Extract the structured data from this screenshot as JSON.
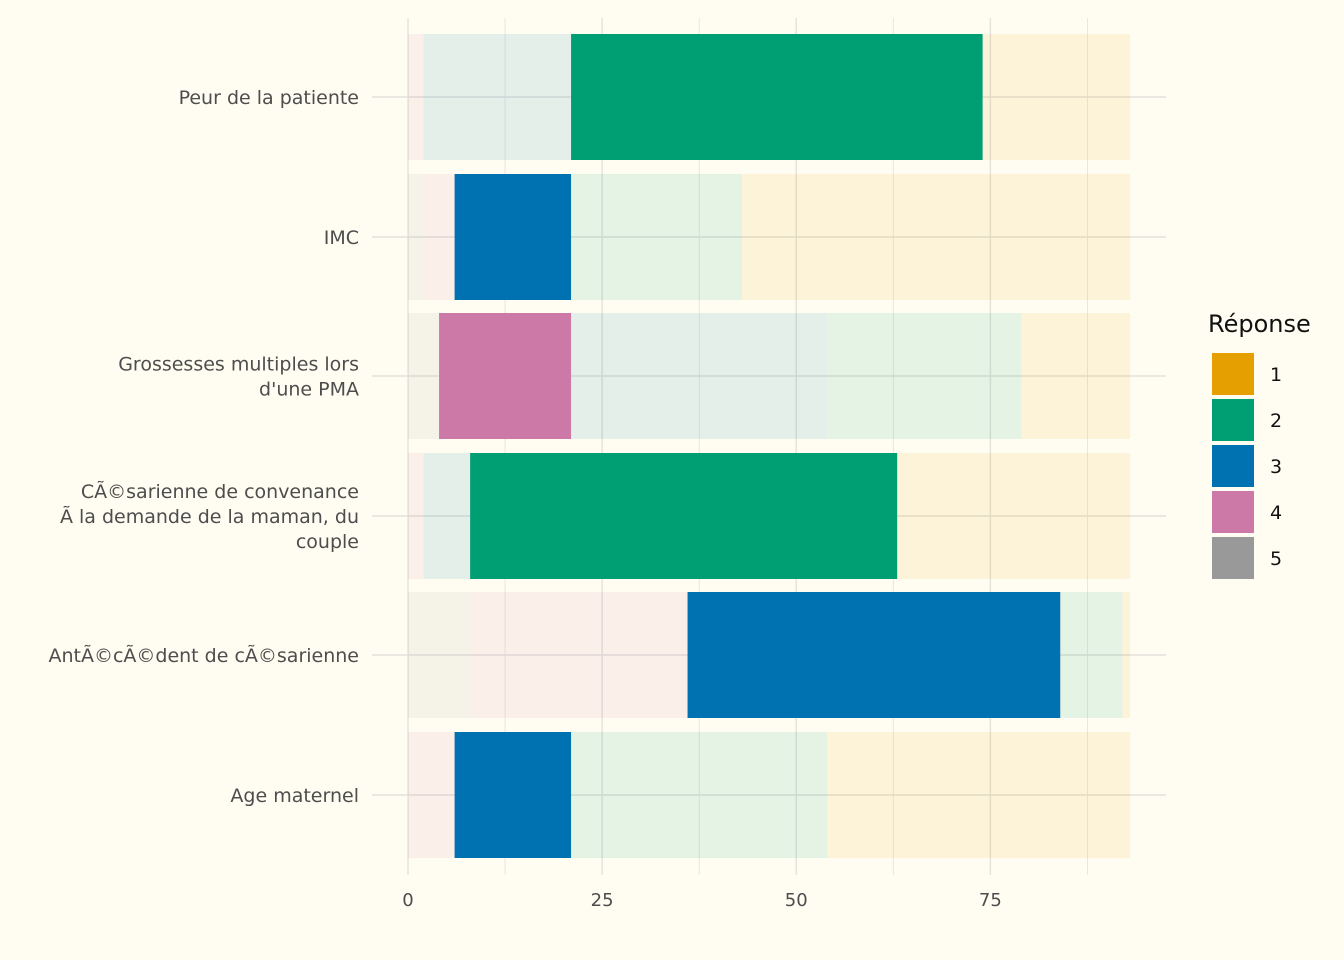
{
  "chart_data": {
    "type": "bar",
    "orientation": "horizontal",
    "stacked": true,
    "categories": [
      "Peur de la patiente",
      "IMC",
      "Grossesses multiples lors d'une PMA",
      "CÃ©sarienne de convenance Ã  la demande de la maman, du couple",
      "AntÃ©cÃ©dent de cÃ©sarienne",
      "Age maternel"
    ],
    "category_lines": [
      [
        "Peur de la patiente"
      ],
      [
        "IMC"
      ],
      [
        "Grossesses multiples lors",
        "d'une PMA"
      ],
      [
        "CÃ©sarienne de convenance",
        "Ã  la demande de la maman, du",
        "couple"
      ],
      [
        "AntÃ©cÃ©dent de cÃ©sarienne"
      ],
      [
        "Age maternel"
      ]
    ],
    "stack_order": [
      "5",
      "4",
      "3",
      "2",
      "1"
    ],
    "series": [
      {
        "name": "1",
        "values": [
          19,
          50,
          14,
          30,
          1,
          39
        ]
      },
      {
        "name": "2",
        "values": [
          53,
          22,
          25,
          55,
          8,
          33
        ]
      },
      {
        "name": "3",
        "values": [
          19,
          15,
          33,
          6,
          48,
          15
        ]
      },
      {
        "name": "4",
        "values": [
          2,
          4,
          17,
          2,
          28,
          6
        ]
      },
      {
        "name": "5",
        "values": [
          0,
          2,
          4,
          0,
          8,
          0
        ]
      }
    ],
    "highlight": [
      {
        "category": "Peur de la patiente",
        "series": "2"
      },
      {
        "category": "IMC",
        "series": "3"
      },
      {
        "category": "Grossesses multiples lors d'une PMA",
        "series": "4"
      },
      {
        "category": "CÃ©sarienne de convenance Ã  la demande de la maman, du couple",
        "series": "2"
      },
      {
        "category": "AntÃ©cÃ©dent de cÃ©sarienne",
        "series": "3"
      },
      {
        "category": "Age maternel",
        "series": "3"
      }
    ],
    "colors": {
      "1": "#E69F00",
      "2": "#009E73",
      "3": "#0072B2",
      "4": "#CC79A7",
      "5": "#999999"
    },
    "faded_opacity": 0.1,
    "xticks": [
      0,
      25,
      50,
      75
    ],
    "xlim": [
      0,
      93
    ],
    "grid": true,
    "legend": {
      "title": "Réponse",
      "position": "right",
      "entries": [
        "1",
        "2",
        "3",
        "4",
        "5"
      ]
    },
    "background": "#FFFDF1",
    "grid_color": "#E3E2DA"
  }
}
